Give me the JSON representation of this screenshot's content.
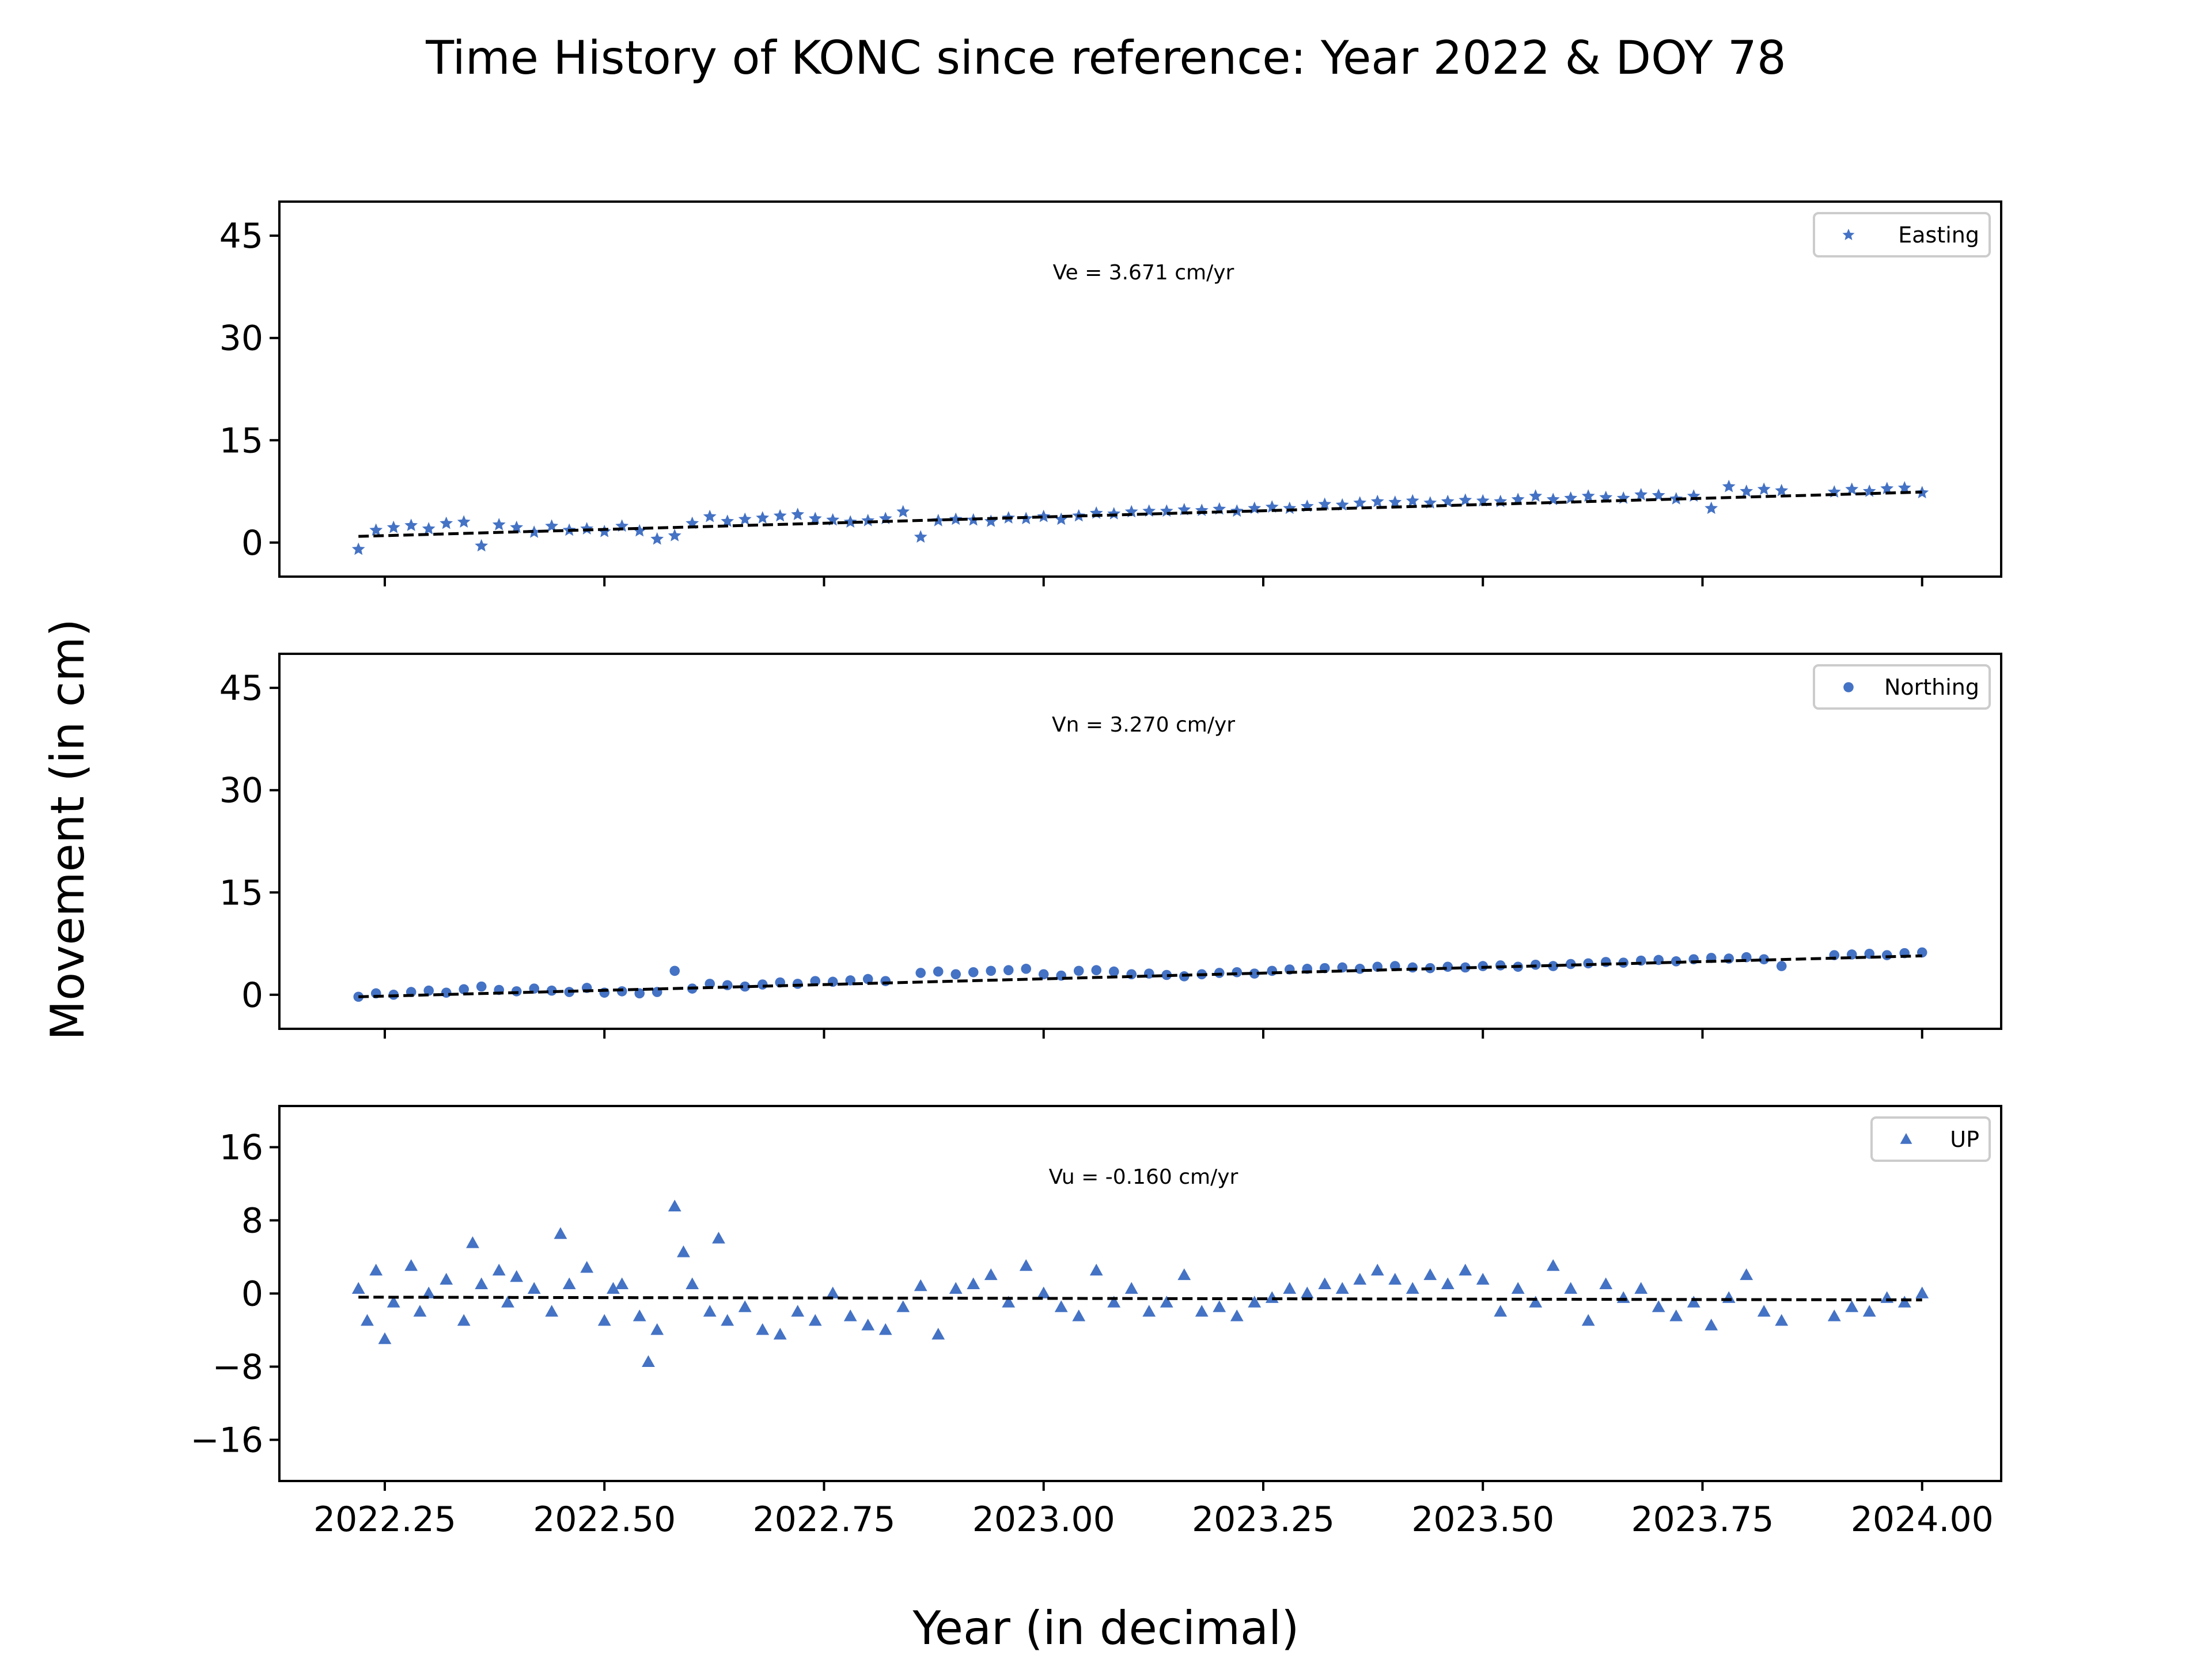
{
  "figure": {
    "title": "Time History of KONC since reference: Year 2022 & DOY 78",
    "ylabel": "Movement (in cm)",
    "xlabel": "Year (in decimal)",
    "xtick_labels": [
      "2022.25",
      "2022.50",
      "2022.75",
      "2023.00",
      "2023.25",
      "2023.50",
      "2023.75",
      "2024.00"
    ],
    "marker_color": "#4472C4"
  },
  "chart_data": [
    {
      "type": "scatter",
      "name": "easting",
      "legend": "Easting",
      "marker": "star",
      "annotation": "Ve =  3.671 cm/yr",
      "ylim": [
        -5,
        50
      ],
      "yticks": [
        0,
        15,
        30,
        45
      ],
      "ytick_labels": [
        "0",
        "15",
        "30",
        "45"
      ],
      "xlim": [
        2022.13,
        2024.09
      ],
      "trend": {
        "x": [
          2022.22,
          2024.0
        ],
        "y": [
          0.9,
          7.4
        ]
      },
      "x": [
        2022.22,
        2022.24,
        2022.26,
        2022.28,
        2022.3,
        2022.32,
        2022.34,
        2022.36,
        2022.38,
        2022.4,
        2022.42,
        2022.44,
        2022.46,
        2022.48,
        2022.5,
        2022.52,
        2022.54,
        2022.56,
        2022.58,
        2022.6,
        2022.62,
        2022.64,
        2022.66,
        2022.68,
        2022.7,
        2022.72,
        2022.74,
        2022.76,
        2022.78,
        2022.8,
        2022.82,
        2022.84,
        2022.86,
        2022.88,
        2022.9,
        2022.92,
        2022.94,
        2022.96,
        2022.98,
        2023.0,
        2023.02,
        2023.04,
        2023.06,
        2023.08,
        2023.1,
        2023.12,
        2023.14,
        2023.16,
        2023.18,
        2023.2,
        2023.22,
        2023.24,
        2023.26,
        2023.28,
        2023.3,
        2023.32,
        2023.34,
        2023.36,
        2023.38,
        2023.4,
        2023.42,
        2023.44,
        2023.46,
        2023.48,
        2023.5,
        2023.52,
        2023.54,
        2023.56,
        2023.58,
        2023.6,
        2023.62,
        2023.64,
        2023.66,
        2023.68,
        2023.7,
        2023.72,
        2023.74,
        2023.76,
        2023.78,
        2023.8,
        2023.82,
        2023.84,
        2023.9,
        2023.92,
        2023.94,
        2023.96,
        2023.98,
        2024.0
      ],
      "y": [
        -1.0,
        1.8,
        2.2,
        2.5,
        2.0,
        2.8,
        3.0,
        -0.5,
        2.6,
        2.2,
        1.5,
        2.4,
        1.8,
        2.0,
        1.6,
        2.4,
        1.7,
        0.5,
        1.0,
        2.8,
        3.8,
        3.1,
        3.4,
        3.6,
        3.9,
        4.1,
        3.5,
        3.3,
        3.0,
        3.2,
        3.5,
        4.5,
        0.8,
        3.2,
        3.4,
        3.3,
        3.1,
        3.6,
        3.5,
        3.8,
        3.4,
        3.9,
        4.3,
        4.2,
        4.5,
        4.6,
        4.6,
        4.8,
        4.7,
        4.9,
        4.6,
        5.0,
        5.2,
        5.0,
        5.3,
        5.6,
        5.5,
        5.8,
        6.0,
        5.9,
        6.1,
        5.8,
        6.0,
        6.2,
        6.1,
        6.0,
        6.3,
        6.8,
        6.3,
        6.5,
        6.8,
        6.6,
        6.5,
        7.0,
        6.9,
        6.4,
        6.8,
        5.0,
        8.2,
        7.5,
        7.8,
        7.6,
        7.4,
        7.8,
        7.5,
        7.9,
        8.0,
        7.3
      ]
    },
    {
      "type": "scatter",
      "name": "northing",
      "legend": "Northing",
      "marker": "circle",
      "annotation": "Vn =  3.270 cm/yr",
      "ylim": [
        -5,
        50
      ],
      "yticks": [
        0,
        15,
        30,
        45
      ],
      "ytick_labels": [
        "0",
        "15",
        "30",
        "45"
      ],
      "xlim": [
        2022.13,
        2024.09
      ],
      "trend": {
        "x": [
          2022.22,
          2024.0
        ],
        "y": [
          -0.3,
          5.7
        ]
      },
      "x": [
        2022.22,
        2022.24,
        2022.26,
        2022.28,
        2022.3,
        2022.32,
        2022.34,
        2022.36,
        2022.38,
        2022.4,
        2022.42,
        2022.44,
        2022.46,
        2022.48,
        2022.5,
        2022.52,
        2022.54,
        2022.56,
        2022.58,
        2022.6,
        2022.62,
        2022.64,
        2022.66,
        2022.68,
        2022.7,
        2022.72,
        2022.74,
        2022.76,
        2022.78,
        2022.8,
        2022.82,
        2022.86,
        2022.88,
        2022.9,
        2022.92,
        2022.94,
        2022.96,
        2022.98,
        2023.0,
        2023.02,
        2023.04,
        2023.06,
        2023.08,
        2023.1,
        2023.12,
        2023.14,
        2023.16,
        2023.18,
        2023.2,
        2023.22,
        2023.24,
        2023.26,
        2023.28,
        2023.3,
        2023.32,
        2023.34,
        2023.36,
        2023.38,
        2023.4,
        2023.42,
        2023.44,
        2023.46,
        2023.48,
        2023.5,
        2023.52,
        2023.54,
        2023.56,
        2023.58,
        2023.6,
        2023.62,
        2023.64,
        2023.66,
        2023.68,
        2023.7,
        2023.72,
        2023.74,
        2023.76,
        2023.78,
        2023.8,
        2023.82,
        2023.84,
        2023.9,
        2023.92,
        2023.94,
        2023.96,
        2023.98,
        2024.0
      ],
      "y": [
        -0.3,
        0.2,
        0.0,
        0.4,
        0.6,
        0.3,
        0.8,
        1.2,
        0.7,
        0.5,
        0.9,
        0.6,
        0.4,
        1.0,
        0.3,
        0.5,
        0.2,
        0.4,
        3.5,
        0.9,
        1.6,
        1.4,
        1.2,
        1.5,
        1.8,
        1.6,
        2.0,
        1.9,
        2.1,
        2.3,
        2.0,
        3.2,
        3.4,
        3.0,
        3.3,
        3.5,
        3.6,
        3.8,
        3.0,
        2.8,
        3.5,
        3.6,
        3.4,
        3.0,
        3.1,
        2.9,
        2.7,
        3.0,
        3.2,
        3.3,
        3.1,
        3.5,
        3.7,
        3.8,
        3.9,
        4.0,
        3.8,
        4.1,
        4.2,
        4.0,
        3.9,
        4.1,
        4.0,
        4.2,
        4.3,
        4.1,
        4.4,
        4.2,
        4.5,
        4.6,
        4.8,
        4.7,
        5.0,
        5.1,
        4.9,
        5.2,
        5.4,
        5.3,
        5.5,
        5.2,
        4.2,
        5.8,
        5.9,
        6.0,
        5.8,
        6.1,
        6.2
      ]
    },
    {
      "type": "scatter",
      "name": "up",
      "legend": "UP",
      "marker": "triangle",
      "annotation": "Vu = -0.160 cm/yr",
      "ylim": [
        -20.5,
        20.5
      ],
      "yticks": [
        -16,
        -8,
        0,
        8,
        16
      ],
      "ytick_labels": [
        "−16",
        "−8",
        "0",
        "8",
        "16"
      ],
      "xlim": [
        2022.13,
        2024.09
      ],
      "trend": {
        "x": [
          2022.22,
          2024.0
        ],
        "y": [
          -0.4,
          -0.7
        ]
      },
      "x": [
        2022.22,
        2022.23,
        2022.24,
        2022.25,
        2022.26,
        2022.28,
        2022.29,
        2022.3,
        2022.32,
        2022.34,
        2022.35,
        2022.36,
        2022.38,
        2022.39,
        2022.4,
        2022.42,
        2022.44,
        2022.45,
        2022.46,
        2022.48,
        2022.5,
        2022.51,
        2022.52,
        2022.54,
        2022.55,
        2022.56,
        2022.58,
        2022.59,
        2022.6,
        2022.62,
        2022.63,
        2022.64,
        2022.66,
        2022.68,
        2022.7,
        2022.72,
        2022.74,
        2022.76,
        2022.78,
        2022.8,
        2022.82,
        2022.84,
        2022.86,
        2022.88,
        2022.9,
        2022.92,
        2022.94,
        2022.96,
        2022.98,
        2023.0,
        2023.02,
        2023.04,
        2023.06,
        2023.08,
        2023.1,
        2023.12,
        2023.14,
        2023.16,
        2023.18,
        2023.2,
        2023.22,
        2023.24,
        2023.26,
        2023.28,
        2023.3,
        2023.32,
        2023.34,
        2023.36,
        2023.38,
        2023.4,
        2023.42,
        2023.44,
        2023.46,
        2023.48,
        2023.5,
        2023.52,
        2023.54,
        2023.56,
        2023.58,
        2023.6,
        2023.62,
        2023.64,
        2023.66,
        2023.68,
        2023.7,
        2023.72,
        2023.74,
        2023.76,
        2023.78,
        2023.8,
        2023.82,
        2023.84,
        2023.9,
        2023.92,
        2023.94,
        2023.96,
        2023.98,
        2024.0
      ],
      "y": [
        0.5,
        -3.0,
        2.5,
        -5.0,
        -1.0,
        3.0,
        -2.0,
        0.0,
        1.5,
        -3.0,
        5.5,
        1.0,
        2.5,
        -1.0,
        1.8,
        0.5,
        -2.0,
        6.5,
        1.0,
        2.8,
        -3.0,
        0.5,
        1.0,
        -2.5,
        -7.5,
        -4.0,
        9.5,
        4.5,
        1.0,
        -2.0,
        6.0,
        -3.0,
        -1.5,
        -4.0,
        -4.5,
        -2.0,
        -3.0,
        0.0,
        -2.5,
        -3.5,
        -4.0,
        -1.5,
        0.8,
        -4.5,
        0.5,
        1.0,
        2.0,
        -1.0,
        3.0,
        0.0,
        -1.5,
        -2.5,
        2.5,
        -1.0,
        0.5,
        -2.0,
        -1.0,
        2.0,
        -2.0,
        -1.5,
        -2.5,
        -1.0,
        -0.5,
        0.5,
        0.0,
        1.0,
        0.5,
        1.5,
        2.5,
        1.5,
        0.5,
        2.0,
        1.0,
        2.5,
        1.5,
        -2.0,
        0.5,
        -1.0,
        3.0,
        0.5,
        -3.0,
        1.0,
        -0.5,
        0.5,
        -1.5,
        -2.5,
        -1.0,
        -3.5,
        -0.5,
        2.0,
        -2.0,
        -3.0,
        -2.5,
        -1.5,
        -2.0,
        -0.5,
        -1.0,
        0.0
      ]
    }
  ]
}
